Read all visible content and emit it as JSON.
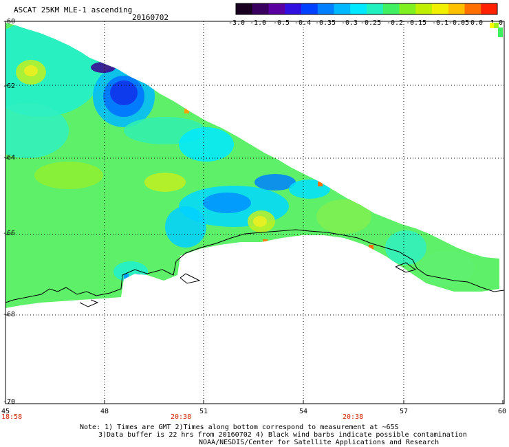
{
  "header": {
    "title": "ASCAT 25KM MLE-1 ascending",
    "date": "20160702"
  },
  "colorbar": {
    "labels": [
      "-3.0",
      "-1.0",
      "-0.5",
      "-0.4",
      "-0.35",
      "-0.3",
      "-0.25",
      "-0.2",
      "-0.15",
      "-0.1",
      "-0.05",
      "0.0",
      "1.0"
    ],
    "colors": [
      "#1a0020",
      "#3a0060",
      "#5a00a0",
      "#3010e0",
      "#0040ff",
      "#0080ff",
      "#00b8ff",
      "#00e8ff",
      "#20f0c0",
      "#40f060",
      "#80f020",
      "#c0f000",
      "#f0f000",
      "#ffc000",
      "#ff7000",
      "#ff2000"
    ]
  },
  "axes": {
    "x_ticks": [
      "45",
      "48",
      "51",
      "54",
      "57",
      "60"
    ],
    "y_ticks": [
      "-60",
      "-62",
      "-64",
      "-66",
      "-68",
      "-70"
    ]
  },
  "times": [
    "18:58",
    "20:38",
    "20:38"
  ],
  "notes": {
    "line1": "Note: 1) Times are GMT 2)Times along bottom correspond to measurement at ~65S",
    "line2": "3)Data buffer is 22 hrs from 20160702 4) Black wind barbs indicate possible contamination",
    "line3": "NOAA/NESDIS/Center for Satellite Applications and Research"
  }
}
